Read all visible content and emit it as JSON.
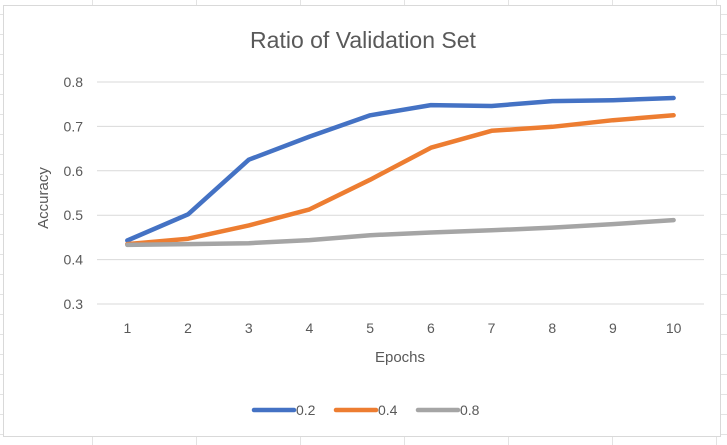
{
  "chart_data": {
    "type": "line",
    "title": "Ratio of Validation Set",
    "xlabel": "Epochs",
    "ylabel": "Accuracy",
    "x": [
      1,
      2,
      3,
      4,
      5,
      6,
      7,
      8,
      9,
      10
    ],
    "categories": [
      "1",
      "2",
      "3",
      "4",
      "5",
      "6",
      "7",
      "8",
      "9",
      "10"
    ],
    "ylim": [
      0.3,
      0.8
    ],
    "yticks": [
      0.3,
      0.4,
      0.5,
      0.6,
      0.7,
      0.8
    ],
    "ytick_labels": [
      "0.3",
      "0.4",
      "0.5",
      "0.6",
      "0.7",
      "0.8"
    ],
    "grid": true,
    "legend_position": "bottom",
    "series": [
      {
        "name": "0.2",
        "color": "#4472c4",
        "values": [
          0.443,
          0.502,
          0.625,
          0.677,
          0.725,
          0.748,
          0.746,
          0.757,
          0.759,
          0.764
        ]
      },
      {
        "name": "0.4",
        "color": "#ed7d31",
        "values": [
          0.435,
          0.447,
          0.477,
          0.513,
          0.58,
          0.652,
          0.69,
          0.699,
          0.714,
          0.725
        ]
      },
      {
        "name": "0.8",
        "color": "#a5a5a5",
        "values": [
          0.433,
          0.435,
          0.437,
          0.444,
          0.455,
          0.461,
          0.466,
          0.472,
          0.48,
          0.489
        ]
      }
    ]
  }
}
